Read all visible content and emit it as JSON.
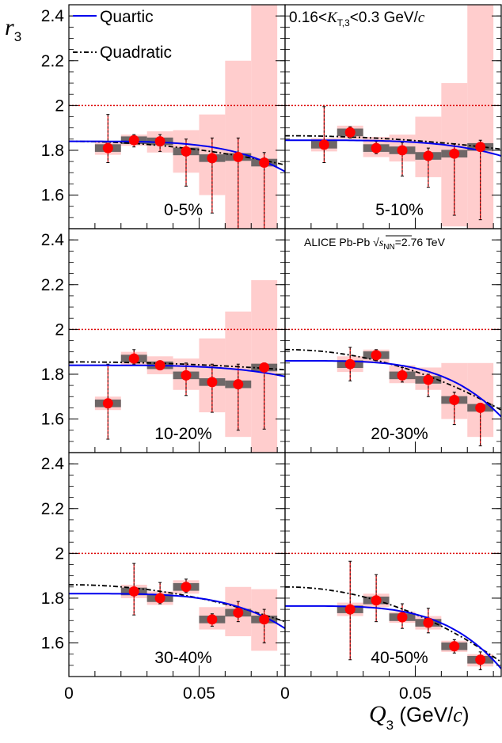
{
  "y_axis_label": {
    "main": "r",
    "sub": "3"
  },
  "x_axis_label": {
    "main": "Q",
    "sub": "3",
    "unit_pre": " (GeV/",
    "unit_c": "c",
    "unit_post": ")"
  },
  "legend": {
    "quartic": "Quartic",
    "quadratic": "Quadratic"
  },
  "kt_annotation": {
    "pre": "0.16<",
    "k": "K",
    "sub": "T,3",
    "post": "<0.3 GeV/",
    "c": "c"
  },
  "alice_annotation": {
    "pre": "ALICE Pb-Pb ",
    "sqrt_s": "s",
    "sub": "NN",
    "post": "=2.76 TeV"
  },
  "colors": {
    "quartic": "#0000ee",
    "quadratic": "#000000",
    "points": "#ff0000",
    "syst": "#ffc0c0",
    "box": "#555555",
    "ref_line": "#dd0000"
  },
  "chart_data": {
    "type": "scatter",
    "xlabel": "Q_3 (GeV/c)",
    "ylabel": "r_3",
    "xlim": [
      0,
      0.083
    ],
    "ylim": [
      1.45,
      2.45
    ],
    "x_ticks": [
      "0",
      "0.05"
    ],
    "y_ticks": [
      "1.6",
      "1.8",
      "2",
      "2.2",
      "2.4"
    ],
    "reference_line": 2.0,
    "panels": [
      {
        "label": "0-5%",
        "x": [
          0.015,
          0.025,
          0.035,
          0.045,
          0.055,
          0.065,
          0.075
        ],
        "y": [
          1.81,
          1.845,
          1.84,
          1.795,
          1.765,
          1.77,
          1.745
        ],
        "stat_low": [
          1.745,
          1.815,
          1.795,
          1.64,
          1.52,
          1.45,
          1.45
        ],
        "stat_high": [
          1.96,
          1.87,
          1.87,
          1.85,
          1.855,
          1.855,
          1.79
        ],
        "syst_low": [
          1.78,
          1.82,
          1.79,
          1.7,
          1.6,
          1.45,
          1.45
        ],
        "syst_high": [
          1.84,
          1.87,
          1.885,
          1.89,
          1.96,
          2.2,
          2.45
        ],
        "quartic": {
          "c": 1.84,
          "e": 0.0
        },
        "quadratic": {
          "c": 1.84,
          "e": 0.0
        }
      },
      {
        "label": "5-10%",
        "x": [
          0.015,
          0.025,
          0.035,
          0.045,
          0.055,
          0.065,
          0.075
        ],
        "y": [
          1.825,
          1.88,
          1.81,
          1.8,
          1.775,
          1.785,
          1.815
        ],
        "stat_low": [
          1.745,
          1.855,
          1.785,
          1.685,
          1.635,
          1.51,
          1.49
        ],
        "stat_high": [
          1.995,
          1.905,
          1.84,
          1.835,
          1.81,
          1.83,
          1.845
        ],
        "syst_low": [
          1.795,
          1.85,
          1.77,
          1.75,
          1.68,
          1.46,
          1.45
        ],
        "syst_high": [
          1.855,
          1.91,
          1.86,
          1.87,
          1.95,
          2.1,
          2.45
        ],
        "quartic": {
          "c": 1.845,
          "e": 0.0
        },
        "quadratic": {
          "c": 1.865,
          "e": 0.0
        }
      },
      {
        "label": "10-20%",
        "x": [
          0.015,
          0.025,
          0.035,
          0.045,
          0.055,
          0.065,
          0.075
        ],
        "y": [
          1.67,
          1.87,
          1.84,
          1.795,
          1.765,
          1.755,
          1.83
        ],
        "stat_low": [
          1.51,
          1.845,
          1.82,
          1.705,
          1.63,
          1.55,
          1.555
        ],
        "stat_high": [
          1.845,
          1.91,
          1.86,
          1.85,
          1.845,
          1.845,
          1.85
        ],
        "syst_low": [
          1.64,
          1.84,
          1.8,
          1.73,
          1.63,
          1.52,
          1.45
        ],
        "syst_high": [
          1.7,
          1.9,
          1.88,
          1.87,
          1.96,
          2.08,
          2.22
        ],
        "quartic": {
          "c": 1.84,
          "e": 0.0
        },
        "quadratic": {
          "c": 1.855,
          "e": 0.0
        }
      },
      {
        "label": "20-30%",
        "x": [
          0.025,
          0.035,
          0.045,
          0.055,
          0.065,
          0.075
        ],
        "y": [
          1.845,
          1.885,
          1.795,
          1.775,
          1.685,
          1.65
        ],
        "stat_low": [
          1.77,
          1.86,
          1.765,
          1.7,
          1.575,
          1.48
        ],
        "stat_high": [
          1.92,
          1.91,
          1.83,
          1.8,
          1.72,
          1.67
        ],
        "syst_low": [
          1.81,
          1.85,
          1.76,
          1.73,
          1.6,
          1.52
        ],
        "syst_high": [
          1.88,
          1.91,
          1.84,
          1.83,
          1.85,
          1.85
        ],
        "quartic": {
          "c": 1.86,
          "e": 0.0
        },
        "quadratic": {
          "c": 1.91,
          "e": 0.0
        }
      },
      {
        "label": "30-40%",
        "x": [
          0.025,
          0.035,
          0.045,
          0.055,
          0.065,
          0.075
        ],
        "y": [
          1.83,
          1.8,
          1.85,
          1.705,
          1.735,
          1.705
        ],
        "stat_low": [
          1.725,
          1.775,
          1.825,
          1.675,
          1.695,
          1.6
        ],
        "stat_high": [
          1.955,
          1.87,
          1.885,
          1.73,
          1.785,
          1.75
        ],
        "syst_low": [
          1.8,
          1.77,
          1.82,
          1.66,
          1.63,
          1.565
        ],
        "syst_high": [
          1.86,
          1.83,
          1.88,
          1.76,
          1.85,
          1.84
        ],
        "quartic": {
          "c": 1.82,
          "e": 0.0
        },
        "quadratic": {
          "c": 1.86,
          "e": 0.0
        }
      },
      {
        "label": "40-50%",
        "x": [
          0.025,
          0.035,
          0.045,
          0.055,
          0.065,
          0.075
        ],
        "y": [
          1.75,
          1.79,
          1.715,
          1.69,
          1.585,
          1.525
        ],
        "stat_low": [
          1.525,
          1.695,
          1.665,
          1.645,
          1.555,
          1.48
        ],
        "stat_high": [
          1.965,
          1.905,
          1.775,
          1.755,
          1.615,
          1.56
        ],
        "syst_low": [
          1.72,
          1.76,
          1.69,
          1.66,
          1.56,
          1.495
        ],
        "syst_high": [
          1.78,
          1.82,
          1.74,
          1.72,
          1.61,
          1.55
        ],
        "quartic": {
          "c": 1.765,
          "e": 0.0
        },
        "quadratic": {
          "c": 1.85,
          "e": 0.0
        }
      }
    ]
  }
}
